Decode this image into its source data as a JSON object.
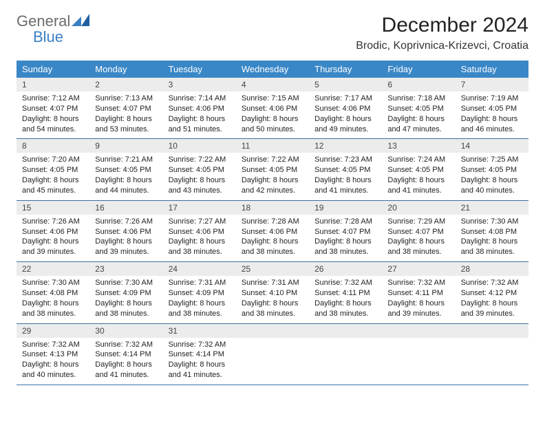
{
  "logo": {
    "general": "General",
    "blue": "Blue"
  },
  "header": {
    "month_title": "December 2024",
    "location": "Brodic, Koprivnica-Krizevci, Croatia"
  },
  "colors": {
    "header_bg": "#3a87c7",
    "header_text": "#ffffff",
    "daynum_bg": "#ececec",
    "rule": "#3a6fa5",
    "logo_gray": "#6b6b6b",
    "logo_blue": "#3a7fc4"
  },
  "weekdays": [
    "Sunday",
    "Monday",
    "Tuesday",
    "Wednesday",
    "Thursday",
    "Friday",
    "Saturday"
  ],
  "days": [
    {
      "n": "1",
      "sunrise": "7:12 AM",
      "sunset": "4:07 PM",
      "daylight": "8 hours and 54 minutes."
    },
    {
      "n": "2",
      "sunrise": "7:13 AM",
      "sunset": "4:07 PM",
      "daylight": "8 hours and 53 minutes."
    },
    {
      "n": "3",
      "sunrise": "7:14 AM",
      "sunset": "4:06 PM",
      "daylight": "8 hours and 51 minutes."
    },
    {
      "n": "4",
      "sunrise": "7:15 AM",
      "sunset": "4:06 PM",
      "daylight": "8 hours and 50 minutes."
    },
    {
      "n": "5",
      "sunrise": "7:17 AM",
      "sunset": "4:06 PM",
      "daylight": "8 hours and 49 minutes."
    },
    {
      "n": "6",
      "sunrise": "7:18 AM",
      "sunset": "4:05 PM",
      "daylight": "8 hours and 47 minutes."
    },
    {
      "n": "7",
      "sunrise": "7:19 AM",
      "sunset": "4:05 PM",
      "daylight": "8 hours and 46 minutes."
    },
    {
      "n": "8",
      "sunrise": "7:20 AM",
      "sunset": "4:05 PM",
      "daylight": "8 hours and 45 minutes."
    },
    {
      "n": "9",
      "sunrise": "7:21 AM",
      "sunset": "4:05 PM",
      "daylight": "8 hours and 44 minutes."
    },
    {
      "n": "10",
      "sunrise": "7:22 AM",
      "sunset": "4:05 PM",
      "daylight": "8 hours and 43 minutes."
    },
    {
      "n": "11",
      "sunrise": "7:22 AM",
      "sunset": "4:05 PM",
      "daylight": "8 hours and 42 minutes."
    },
    {
      "n": "12",
      "sunrise": "7:23 AM",
      "sunset": "4:05 PM",
      "daylight": "8 hours and 41 minutes."
    },
    {
      "n": "13",
      "sunrise": "7:24 AM",
      "sunset": "4:05 PM",
      "daylight": "8 hours and 41 minutes."
    },
    {
      "n": "14",
      "sunrise": "7:25 AM",
      "sunset": "4:05 PM",
      "daylight": "8 hours and 40 minutes."
    },
    {
      "n": "15",
      "sunrise": "7:26 AM",
      "sunset": "4:06 PM",
      "daylight": "8 hours and 39 minutes."
    },
    {
      "n": "16",
      "sunrise": "7:26 AM",
      "sunset": "4:06 PM",
      "daylight": "8 hours and 39 minutes."
    },
    {
      "n": "17",
      "sunrise": "7:27 AM",
      "sunset": "4:06 PM",
      "daylight": "8 hours and 38 minutes."
    },
    {
      "n": "18",
      "sunrise": "7:28 AM",
      "sunset": "4:06 PM",
      "daylight": "8 hours and 38 minutes."
    },
    {
      "n": "19",
      "sunrise": "7:28 AM",
      "sunset": "4:07 PM",
      "daylight": "8 hours and 38 minutes."
    },
    {
      "n": "20",
      "sunrise": "7:29 AM",
      "sunset": "4:07 PM",
      "daylight": "8 hours and 38 minutes."
    },
    {
      "n": "21",
      "sunrise": "7:30 AM",
      "sunset": "4:08 PM",
      "daylight": "8 hours and 38 minutes."
    },
    {
      "n": "22",
      "sunrise": "7:30 AM",
      "sunset": "4:08 PM",
      "daylight": "8 hours and 38 minutes."
    },
    {
      "n": "23",
      "sunrise": "7:30 AM",
      "sunset": "4:09 PM",
      "daylight": "8 hours and 38 minutes."
    },
    {
      "n": "24",
      "sunrise": "7:31 AM",
      "sunset": "4:09 PM",
      "daylight": "8 hours and 38 minutes."
    },
    {
      "n": "25",
      "sunrise": "7:31 AM",
      "sunset": "4:10 PM",
      "daylight": "8 hours and 38 minutes."
    },
    {
      "n": "26",
      "sunrise": "7:32 AM",
      "sunset": "4:11 PM",
      "daylight": "8 hours and 38 minutes."
    },
    {
      "n": "27",
      "sunrise": "7:32 AM",
      "sunset": "4:11 PM",
      "daylight": "8 hours and 39 minutes."
    },
    {
      "n": "28",
      "sunrise": "7:32 AM",
      "sunset": "4:12 PM",
      "daylight": "8 hours and 39 minutes."
    },
    {
      "n": "29",
      "sunrise": "7:32 AM",
      "sunset": "4:13 PM",
      "daylight": "8 hours and 40 minutes."
    },
    {
      "n": "30",
      "sunrise": "7:32 AM",
      "sunset": "4:14 PM",
      "daylight": "8 hours and 41 minutes."
    },
    {
      "n": "31",
      "sunrise": "7:32 AM",
      "sunset": "4:14 PM",
      "daylight": "8 hours and 41 minutes."
    }
  ],
  "labels": {
    "sunrise": "Sunrise: ",
    "sunset": "Sunset: ",
    "daylight": "Daylight: "
  },
  "layout": {
    "columns": 7,
    "rows": 5,
    "start_weekday_index": 0,
    "total_days": 31
  }
}
